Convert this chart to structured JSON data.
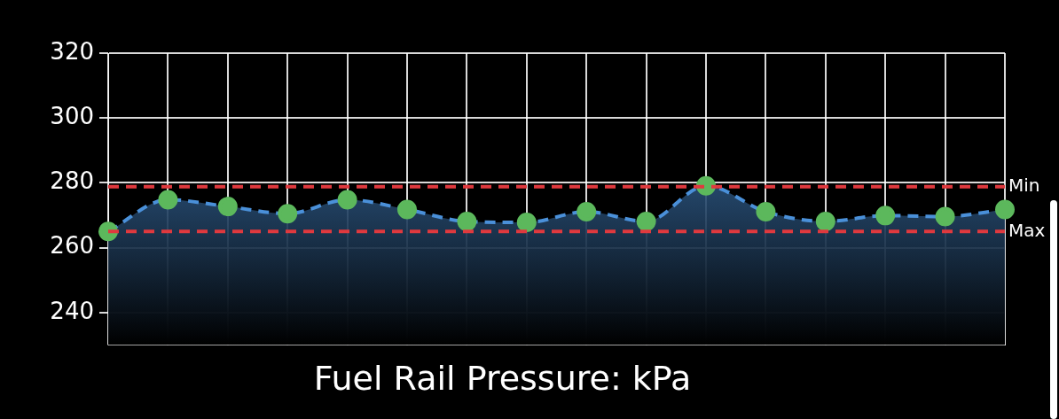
{
  "chart_data": {
    "type": "area",
    "title": "Fuel Rail Pressure: kPa",
    "categories": [
      null,
      null,
      null,
      null,
      null,
      null,
      null,
      null,
      null,
      null,
      null,
      null,
      null,
      null,
      null,
      null
    ],
    "series": [
      {
        "color": "#4a90d9",
        "colors": [
          "#5cb85c",
          "#5cb85c",
          "#5cb85c",
          "#5cb85c",
          "#5cb85c",
          "#5cb85c",
          "#5cb85c",
          "#5cb85c",
          "#5cb85c",
          "#5cb85c",
          "#5cb85c",
          "#5cb85c",
          "#5cb85c",
          "#5cb85c",
          "#5cb85c",
          "#5cb85c"
        ],
        "values": [
          265,
          274.8,
          272.7,
          270.5,
          274.8,
          271.8,
          268.1,
          267.8,
          271.1,
          268.1,
          279.1,
          271.1,
          268.1,
          269.9,
          269.6,
          271.8
        ]
      }
    ],
    "ylim": [
      230,
      320
    ],
    "yticks": [
      240,
      260,
      280,
      300,
      320
    ],
    "ref_lines": [
      {
        "axis": "y",
        "value": 278.8,
        "label": "Min",
        "color": "#e0393e",
        "line_style": "dashed"
      },
      {
        "axis": "y",
        "value": 265,
        "label": "Max",
        "color": "#e0393e",
        "line_style": "dashed"
      }
    ],
    "grid": true,
    "legend": false,
    "marker": "circle",
    "line_style": "dashed"
  }
}
